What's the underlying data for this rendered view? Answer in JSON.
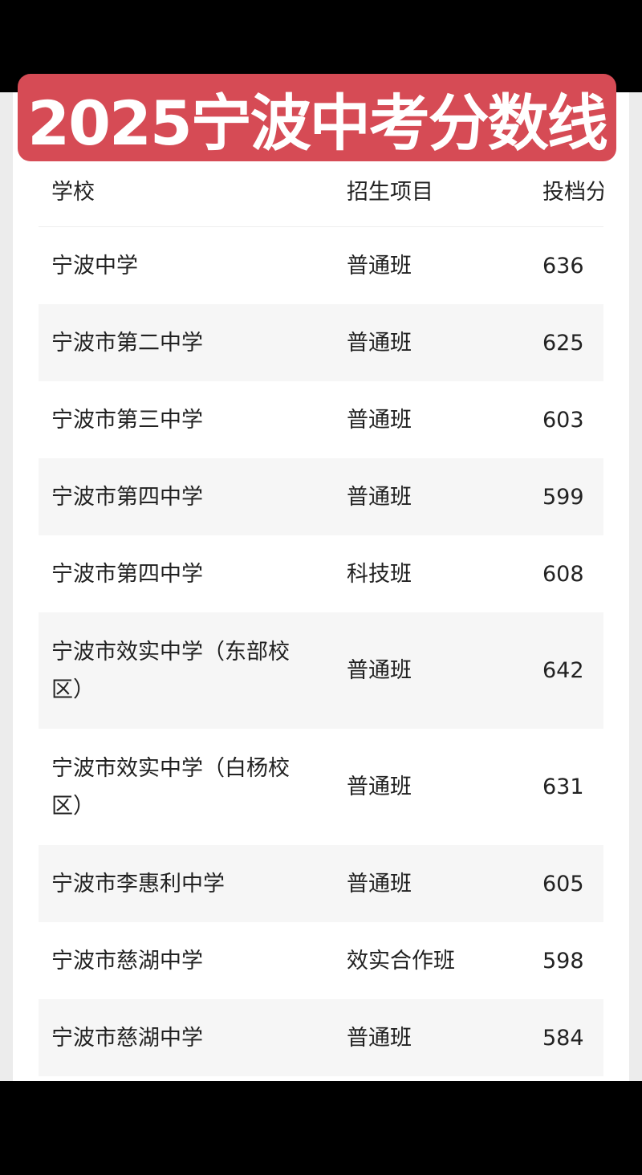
{
  "title": "2025宁波中考分数线",
  "colors": {
    "banner": "#d64b55",
    "row_alt": "#f6f6f6"
  },
  "table": {
    "headers": [
      "学校",
      "招生项目",
      "投档分"
    ],
    "rows": [
      [
        "宁波中学",
        "普通班",
        "636"
      ],
      [
        "宁波市第二中学",
        "普通班",
        "625"
      ],
      [
        "宁波市第三中学",
        "普通班",
        "603"
      ],
      [
        "宁波市第四中学",
        "普通班",
        "599"
      ],
      [
        "宁波市第四中学",
        "科技班",
        "608"
      ],
      [
        "宁波市效实中学（东部校区）",
        "普通班",
        "642"
      ],
      [
        "宁波市效实中学（白杨校区）",
        "普通班",
        "631"
      ],
      [
        "宁波市李惠利中学",
        "普通班",
        "605"
      ],
      [
        "宁波市慈湖中学",
        "效实合作班",
        "598"
      ],
      [
        "宁波市慈湖中学",
        "普通班",
        "584"
      ]
    ]
  }
}
